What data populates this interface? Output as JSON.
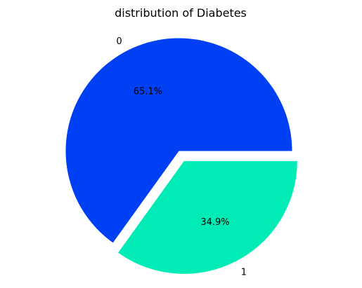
{
  "chart_data": {
    "type": "pie",
    "title": "distribution of Diabetes",
    "categories": [
      "0",
      "1"
    ],
    "values": [
      65.1,
      34.9
    ],
    "percent_labels": [
      "65.1%",
      "34.9%"
    ],
    "colors": [
      "#0040f5",
      "#00ebb5"
    ],
    "explode": [
      0,
      0.1
    ],
    "start_angle_deg": 0,
    "direction": "counterclockwise",
    "legend": "none"
  }
}
